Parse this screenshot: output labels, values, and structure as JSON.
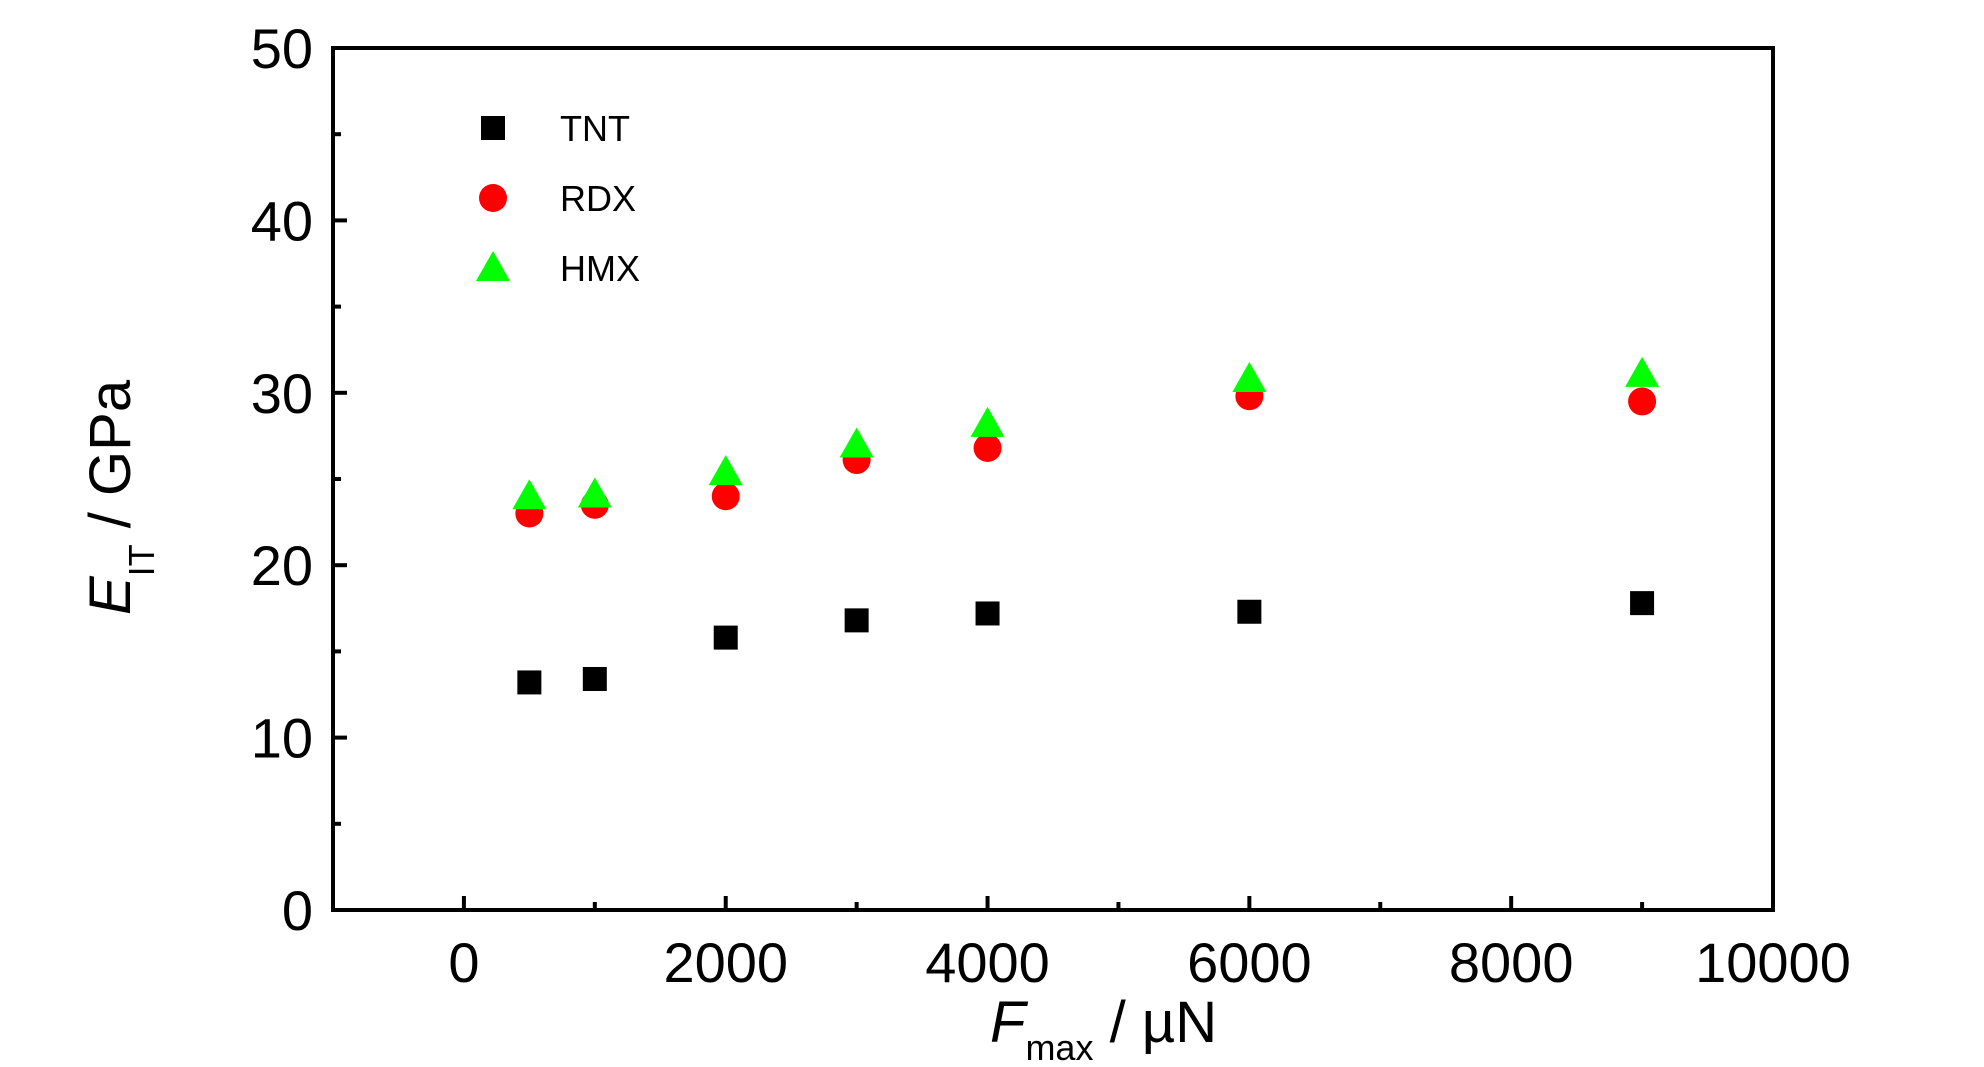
{
  "chart_data": {
    "type": "scatter",
    "xlabel": {
      "main": "F",
      "sub": "max",
      "unit": " / µN"
    },
    "ylabel": {
      "main": "E",
      "sub": "IT",
      "unit": " / GPa"
    },
    "xlim": [
      -1000,
      10000
    ],
    "ylim": [
      0,
      50
    ],
    "x_major_ticks": [
      0,
      2000,
      4000,
      6000,
      8000,
      10000
    ],
    "x_tick_labels": [
      "0",
      "2000",
      "4000",
      "6000",
      "8000",
      "10000"
    ],
    "x_minor_ticks": [
      1000,
      3000,
      5000,
      7000,
      9000
    ],
    "y_major_ticks": [
      0,
      10,
      20,
      30,
      40,
      50
    ],
    "y_tick_labels": [
      "0",
      "10",
      "20",
      "30",
      "40",
      "50"
    ],
    "y_minor_ticks": [
      5,
      15,
      25,
      35,
      45
    ],
    "grid": false,
    "legend_position": "top-left",
    "x": [
      500,
      1000,
      2000,
      3000,
      4000,
      6000,
      9000
    ],
    "series": [
      {
        "name": "TNT",
        "marker": "square",
        "color": "#000000",
        "values": [
          13.2,
          13.4,
          15.8,
          16.8,
          17.2,
          17.3,
          17.8
        ]
      },
      {
        "name": "RDX",
        "marker": "circle",
        "color": "#ff0000",
        "values": [
          23.0,
          23.5,
          24.0,
          26.1,
          26.8,
          29.8,
          29.5
        ]
      },
      {
        "name": "HMX",
        "marker": "triangle",
        "color": "#00ff00",
        "values": [
          24.0,
          24.1,
          25.4,
          27.0,
          28.2,
          30.8,
          31.1
        ]
      }
    ]
  }
}
